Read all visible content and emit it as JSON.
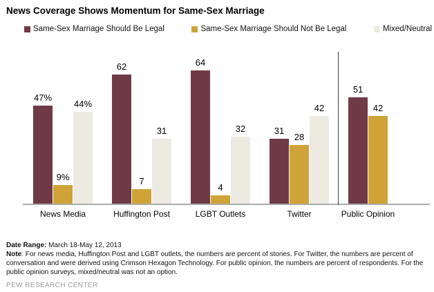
{
  "title": "News Coverage Shows Momentum for Same-Sex Marriage",
  "colors": {
    "legal": "#6F3A46",
    "not_legal": "#CFA338",
    "mixed": "#EDEAE1",
    "axis_line": "#ababab",
    "divider_line": "#3a3a3a",
    "source_gray": "#9b9b9b"
  },
  "chart_data": {
    "type": "bar",
    "categories": [
      "News Media",
      "Huffington Post",
      "LGBT Outlets",
      "Twitter",
      "Public Opinion"
    ],
    "series": [
      {
        "name": "Same-Sex Marriage Should Be Legal",
        "color": "#6F3A46",
        "values": [
          47,
          62,
          64,
          31,
          51
        ],
        "display_labels": [
          "47%",
          "62",
          "64",
          "31",
          "51"
        ]
      },
      {
        "name": "Same-Sex Marriage Should Not Be Legal",
        "color": "#CFA338",
        "values": [
          9,
          7,
          4,
          28,
          42
        ],
        "display_labels": [
          "9%",
          "7",
          "4",
          "28",
          "42"
        ]
      },
      {
        "name": "Mixed/Neutral",
        "color": "#EDEAE1",
        "values": [
          44,
          31,
          32,
          42,
          null
        ],
        "display_labels": [
          "44%",
          "31",
          "32",
          "42",
          ""
        ]
      }
    ],
    "ylim": [
      0,
      70
    ],
    "grid": false,
    "legend_position": "top",
    "divider_after_category": "Twitter",
    "value_suffix_first_group": "%"
  },
  "footer": {
    "date_range_label": "Date Range:",
    "date_range_value": " March 18-May 12, 2013",
    "note_label": "Note",
    "note_text": ": For news media, Huffington Post and LGBT outlets, the numbers are percent of stories. For Twitter, the numbers are percent of conversation and were derived using Crimson Hexagon Technology. For public opinion, the numbers are percent of respondents. For the public opinion surveys, mixed/neutral was not an option.",
    "source": "PEW RESEARCH CENTER"
  }
}
